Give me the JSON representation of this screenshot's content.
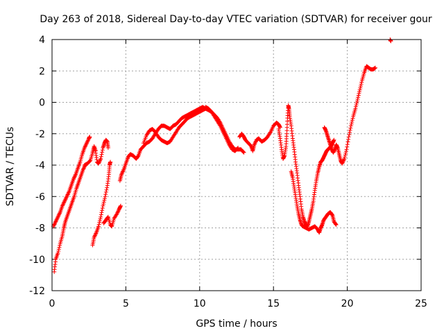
{
  "chart_data": {
    "type": "scatter",
    "title": "Day 263 of 2018, Sidereal Day-to-day VTEC variation (SDTVAR) for receiver gour",
    "xlabel": "GPS time / hours",
    "ylabel": "SDTVAR / TECUs",
    "xlim": [
      0,
      25
    ],
    "ylim": [
      -12,
      4
    ],
    "xticks": [
      0,
      5,
      10,
      15,
      20,
      25
    ],
    "yticks": [
      -12,
      -10,
      -8,
      -6,
      -4,
      -2,
      0,
      2,
      4
    ],
    "grid": true,
    "marker": "+",
    "color": "#ff0000",
    "series": [
      {
        "name": "SDTVAR",
        "segments": [
          [
            [
              0.15,
              -10.8
            ],
            [
              0.25,
              -10.0
            ],
            [
              0.4,
              -9.6
            ],
            [
              0.55,
              -9.0
            ],
            [
              0.7,
              -8.5
            ],
            [
              0.8,
              -8.0
            ],
            [
              0.9,
              -7.6
            ],
            [
              1.05,
              -7.2
            ],
            [
              1.2,
              -6.8
            ],
            [
              1.35,
              -6.4
            ],
            [
              1.5,
              -6.0
            ],
            [
              1.65,
              -5.5
            ],
            [
              1.8,
              -5.1
            ],
            [
              1.95,
              -4.7
            ],
            [
              2.1,
              -4.3
            ],
            [
              2.25,
              -4.0
            ]
          ],
          [
            [
              0.1,
              -7.9
            ],
            [
              0.25,
              -7.6
            ],
            [
              0.4,
              -7.3
            ],
            [
              0.55,
              -7.0
            ],
            [
              0.7,
              -6.6
            ],
            [
              0.85,
              -6.3
            ],
            [
              1.0,
              -6.0
            ],
            [
              1.15,
              -5.7
            ],
            [
              1.3,
              -5.3
            ],
            [
              1.45,
              -4.9
            ],
            [
              1.6,
              -4.6
            ],
            [
              1.75,
              -4.2
            ],
            [
              1.9,
              -3.8
            ],
            [
              2.05,
              -3.3
            ],
            [
              2.2,
              -2.9
            ],
            [
              2.35,
              -2.6
            ],
            [
              2.5,
              -2.3
            ],
            [
              2.55,
              -2.2
            ]
          ],
          [
            [
              2.2,
              -4.0
            ],
            [
              2.4,
              -3.9
            ],
            [
              2.6,
              -3.7
            ],
            [
              2.75,
              -3.2
            ],
            [
              2.85,
              -2.8
            ],
            [
              2.95,
              -3.1
            ],
            [
              3.05,
              -3.8
            ],
            [
              3.15,
              -3.9
            ],
            [
              3.3,
              -3.6
            ],
            [
              3.45,
              -2.9
            ],
            [
              3.55,
              -2.6
            ],
            [
              3.65,
              -2.4
            ],
            [
              3.75,
              -2.5
            ],
            [
              3.8,
              -2.9
            ]
          ],
          [
            [
              2.75,
              -9.1
            ],
            [
              2.85,
              -8.6
            ],
            [
              3.0,
              -8.3
            ],
            [
              3.15,
              -7.9
            ],
            [
              3.3,
              -7.3
            ],
            [
              3.45,
              -6.6
            ],
            [
              3.6,
              -6.0
            ],
            [
              3.75,
              -5.3
            ],
            [
              3.85,
              -4.6
            ],
            [
              3.9,
              -4.0
            ],
            [
              3.95,
              -3.8
            ]
          ],
          [
            [
              3.5,
              -7.7
            ],
            [
              3.65,
              -7.5
            ],
            [
              3.8,
              -7.3
            ],
            [
              3.95,
              -7.8
            ],
            [
              4.05,
              -7.9
            ],
            [
              4.2,
              -7.4
            ],
            [
              4.4,
              -7.1
            ],
            [
              4.55,
              -6.8
            ],
            [
              4.65,
              -6.6
            ]
          ],
          [
            [
              4.6,
              -5.0
            ],
            [
              4.7,
              -4.6
            ],
            [
              4.85,
              -4.3
            ],
            [
              5.0,
              -3.9
            ],
            [
              5.15,
              -3.5
            ],
            [
              5.3,
              -3.3
            ],
            [
              5.5,
              -3.4
            ],
            [
              5.7,
              -3.6
            ],
            [
              5.85,
              -3.4
            ],
            [
              6.0,
              -3.0
            ],
            [
              6.2,
              -2.8
            ],
            [
              6.4,
              -2.6
            ],
            [
              6.6,
              -2.5
            ],
            [
              6.8,
              -2.3
            ],
            [
              7.0,
              -2.0
            ],
            [
              7.2,
              -1.7
            ],
            [
              7.4,
              -1.5
            ],
            [
              7.6,
              -1.5
            ],
            [
              7.8,
              -1.6
            ],
            [
              8.0,
              -1.7
            ],
            [
              8.2,
              -1.5
            ],
            [
              8.4,
              -1.4
            ],
            [
              8.6,
              -1.2
            ],
            [
              8.8,
              -1.0
            ],
            [
              9.0,
              -0.9
            ],
            [
              9.2,
              -0.8
            ],
            [
              9.4,
              -0.7
            ],
            [
              9.6,
              -0.6
            ],
            [
              9.8,
              -0.5
            ],
            [
              10.0,
              -0.4
            ],
            [
              10.2,
              -0.3
            ],
            [
              10.4,
              -0.4
            ]
          ],
          [
            [
              6.2,
              -2.6
            ],
            [
              6.4,
              -2.1
            ],
            [
              6.6,
              -1.8
            ],
            [
              6.8,
              -1.7
            ],
            [
              7.0,
              -1.9
            ],
            [
              7.2,
              -2.2
            ],
            [
              7.4,
              -2.4
            ],
            [
              7.6,
              -2.5
            ],
            [
              7.8,
              -2.6
            ],
            [
              8.0,
              -2.5
            ],
            [
              8.2,
              -2.2
            ],
            [
              8.4,
              -1.9
            ],
            [
              8.6,
              -1.6
            ],
            [
              8.8,
              -1.4
            ],
            [
              9.0,
              -1.2
            ],
            [
              9.2,
              -1.0
            ],
            [
              9.4,
              -0.9
            ],
            [
              9.6,
              -0.8
            ],
            [
              9.8,
              -0.7
            ],
            [
              10.0,
              -0.6
            ],
            [
              10.2,
              -0.5
            ],
            [
              10.4,
              -0.4
            ],
            [
              10.6,
              -0.5
            ],
            [
              10.8,
              -0.6
            ],
            [
              11.0,
              -0.8
            ],
            [
              11.2,
              -1.0
            ],
            [
              11.4,
              -1.3
            ],
            [
              11.6,
              -1.7
            ],
            [
              11.8,
              -2.1
            ],
            [
              12.0,
              -2.5
            ],
            [
              12.2,
              -2.8
            ],
            [
              12.4,
              -3.0
            ],
            [
              12.6,
              -3.0
            ],
            [
              12.8,
              -3.0
            ],
            [
              13.0,
              -3.2
            ]
          ],
          [
            [
              10.4,
              -0.3
            ],
            [
              10.6,
              -0.4
            ],
            [
              10.8,
              -0.6
            ],
            [
              11.0,
              -0.9
            ],
            [
              11.2,
              -1.2
            ],
            [
              11.4,
              -1.5
            ],
            [
              11.6,
              -1.9
            ],
            [
              11.8,
              -2.3
            ],
            [
              12.0,
              -2.7
            ],
            [
              12.2,
              -3.0
            ],
            [
              12.4,
              -3.1
            ],
            [
              12.6,
              -2.9
            ]
          ],
          [
            [
              12.7,
              -2.2
            ],
            [
              12.85,
              -2.0
            ],
            [
              13.0,
              -2.2
            ],
            [
              13.1,
              -2.4
            ],
            [
              13.3,
              -2.6
            ],
            [
              13.5,
              -2.8
            ],
            [
              13.6,
              -3.1
            ],
            [
              13.7,
              -2.7
            ],
            [
              13.85,
              -2.4
            ],
            [
              14.0,
              -2.3
            ],
            [
              14.2,
              -2.5
            ],
            [
              14.4,
              -2.4
            ],
            [
              14.6,
              -2.2
            ],
            [
              14.8,
              -1.9
            ],
            [
              15.0,
              -1.5
            ],
            [
              15.2,
              -1.3
            ],
            [
              15.35,
              -1.4
            ],
            [
              15.45,
              -1.6
            ]
          ],
          [
            [
              15.35,
              -1.7
            ],
            [
              15.45,
              -2.3
            ],
            [
              15.55,
              -3.0
            ],
            [
              15.65,
              -3.6
            ],
            [
              15.75,
              -3.4
            ],
            [
              15.85,
              -2.8
            ],
            [
              15.9,
              -2.0
            ],
            [
              15.95,
              -1.0
            ],
            [
              16.0,
              -0.2
            ],
            [
              16.05,
              -0.4
            ],
            [
              16.1,
              -0.9
            ],
            [
              16.2,
              -1.5
            ],
            [
              16.3,
              -2.3
            ],
            [
              16.4,
              -3.0
            ],
            [
              16.5,
              -3.8
            ],
            [
              16.6,
              -4.5
            ],
            [
              16.7,
              -5.3
            ],
            [
              16.8,
              -6.0
            ],
            [
              16.9,
              -6.8
            ],
            [
              17.0,
              -7.3
            ],
            [
              17.1,
              -7.6
            ],
            [
              17.2,
              -7.8
            ],
            [
              17.3,
              -7.9
            ],
            [
              17.4,
              -7.6
            ],
            [
              17.5,
              -7.2
            ],
            [
              17.6,
              -6.8
            ],
            [
              17.7,
              -6.3
            ],
            [
              17.8,
              -5.6
            ],
            [
              17.9,
              -5.0
            ],
            [
              18.0,
              -4.5
            ],
            [
              18.1,
              -4.1
            ],
            [
              18.2,
              -3.8
            ],
            [
              18.3,
              -3.7
            ],
            [
              18.4,
              -3.5
            ],
            [
              18.5,
              -3.3
            ],
            [
              18.6,
              -3.1
            ],
            [
              18.7,
              -3.0
            ],
            [
              18.8,
              -2.9
            ],
            [
              18.9,
              -2.8
            ],
            [
              19.0,
              -2.6
            ],
            [
              19.1,
              -2.4
            ]
          ],
          [
            [
              16.2,
              -4.4
            ],
            [
              16.3,
              -4.8
            ],
            [
              16.4,
              -5.4
            ],
            [
              16.5,
              -6.0
            ],
            [
              16.6,
              -6.6
            ],
            [
              16.7,
              -7.1
            ],
            [
              16.8,
              -7.5
            ],
            [
              16.9,
              -7.8
            ],
            [
              17.0,
              -7.9
            ],
            [
              17.2,
              -8.0
            ],
            [
              17.4,
              -8.1
            ],
            [
              17.6,
              -8.0
            ],
            [
              17.8,
              -7.9
            ],
            [
              18.0,
              -8.1
            ],
            [
              18.1,
              -8.3
            ],
            [
              18.2,
              -8.0
            ],
            [
              18.3,
              -7.8
            ],
            [
              18.4,
              -7.5
            ],
            [
              18.55,
              -7.3
            ],
            [
              18.7,
              -7.1
            ],
            [
              18.85,
              -7.0
            ],
            [
              19.0,
              -7.2
            ],
            [
              19.1,
              -7.6
            ],
            [
              19.25,
              -7.8
            ]
          ],
          [
            [
              18.45,
              -1.6
            ],
            [
              18.55,
              -1.8
            ],
            [
              18.65,
              -2.1
            ],
            [
              18.75,
              -2.4
            ],
            [
              18.85,
              -2.7
            ],
            [
              18.95,
              -3.0
            ],
            [
              19.05,
              -3.2
            ],
            [
              19.15,
              -3.0
            ],
            [
              19.25,
              -2.7
            ],
            [
              19.35,
              -2.9
            ],
            [
              19.45,
              -3.3
            ],
            [
              19.55,
              -3.7
            ],
            [
              19.65,
              -3.9
            ],
            [
              19.8,
              -3.6
            ],
            [
              19.95,
              -3.0
            ],
            [
              20.1,
              -2.2
            ],
            [
              20.25,
              -1.5
            ],
            [
              20.4,
              -0.9
            ],
            [
              20.55,
              -0.4
            ],
            [
              20.7,
              0.2
            ],
            [
              20.85,
              0.8
            ],
            [
              21.0,
              1.4
            ],
            [
              21.15,
              1.9
            ],
            [
              21.3,
              2.3
            ],
            [
              21.45,
              2.2
            ],
            [
              21.6,
              2.1
            ],
            [
              21.75,
              2.1
            ],
            [
              21.9,
              2.2
            ]
          ],
          [
            [
              22.9,
              4.0
            ],
            [
              22.95,
              3.9
            ]
          ]
        ]
      }
    ]
  }
}
